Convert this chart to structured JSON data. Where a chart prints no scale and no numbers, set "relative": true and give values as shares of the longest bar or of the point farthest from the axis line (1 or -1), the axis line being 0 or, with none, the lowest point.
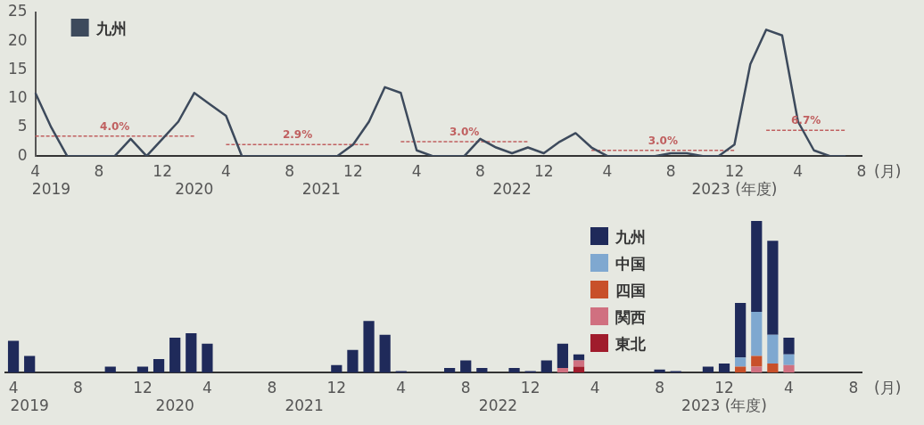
{
  "chart_data": [
    {
      "type": "line",
      "xlabel": "(月)",
      "categories": [
        "4",
        "\n2019",
        null,
        null,
        "8",
        null,
        null,
        null,
        "12",
        null,
        "\n2020",
        null,
        "4",
        null,
        null,
        null,
        "8",
        null,
        "\n2021",
        null,
        "12",
        null,
        null,
        null,
        "4",
        null,
        null,
        null,
        "8",
        null,
        "\n2022",
        null,
        "12",
        null,
        null,
        null,
        "4",
        null,
        null,
        null,
        "8",
        null,
        null,
        null,
        "12\n2023 (年度)",
        null,
        null,
        null,
        "4",
        null,
        null,
        null,
        "8"
      ],
      "series": [
        {
          "name": "九州",
          "color": "#3d4a5c",
          "values": [
            11,
            5,
            0,
            0,
            0,
            0,
            3,
            0,
            3,
            6,
            11,
            9,
            7,
            0,
            0,
            0,
            0,
            0,
            0,
            0,
            2,
            6,
            12,
            11,
            1,
            0,
            0,
            0,
            3,
            1.5,
            0.5,
            1.5,
            0.5,
            2.5,
            4,
            1.5,
            0,
            0,
            0,
            0,
            0.5,
            0.5,
            0,
            0,
            2,
            16,
            22,
            21,
            6,
            1,
            0,
            0,
            null
          ]
        },
        {
          "color": "#c06060",
          "line_style": "dashed",
          "values": [
            3.5,
            3.5,
            3.5,
            3.5,
            3.5,
            3.5,
            3.5,
            3.5,
            3.5,
            3.5,
            3.5,
            null,
            2,
            2,
            2,
            2,
            2,
            2,
            2,
            2,
            2,
            2,
            null,
            2.5,
            2.5,
            2.5,
            2.5,
            2.5,
            2.5,
            2.5,
            2.5,
            2.5,
            null,
            null,
            null,
            1,
            1,
            1,
            1,
            1,
            1,
            1,
            1,
            1,
            1,
            null,
            4.5,
            4.5,
            4.5,
            4.5,
            4.5,
            4.5,
            null
          ]
        }
      ],
      "annotations": [
        "4.0%",
        "2.9%",
        "3.0%",
        "3.0%",
        "6.7%"
      ],
      "ylim": [
        0,
        25
      ],
      "yticks": [
        0,
        5,
        10,
        15,
        20,
        25
      ],
      "grid": false,
      "legend": "top left",
      "marker": "none"
    },
    {
      "type": "bar",
      "stacked": true,
      "relative": true,
      "categories": [
        "4",
        "\n2019",
        null,
        null,
        "8",
        null,
        null,
        null,
        "12",
        null,
        "\n2020",
        null,
        "4",
        null,
        null,
        null,
        "8",
        null,
        "\n2021",
        null,
        "12",
        null,
        null,
        null,
        "4",
        null,
        null,
        null,
        "8",
        null,
        "\n2022",
        null,
        "12",
        null,
        null,
        null,
        "4",
        null,
        null,
        null,
        "8",
        null,
        null,
        null,
        "12\n2023 (年度)",
        null,
        null,
        null,
        "4",
        null,
        null,
        null,
        "8"
      ],
      "xlabel": "(月)",
      "series": [
        {
          "name": "東北",
          "color": "#a01c2c",
          "values": [
            0,
            0,
            0,
            0,
            0,
            0,
            0,
            0,
            0,
            0,
            0,
            0,
            0,
            0,
            0,
            0,
            0,
            0,
            0,
            0,
            0,
            0,
            0,
            0,
            0,
            0,
            0,
            0,
            0,
            0,
            0,
            0,
            0,
            0,
            0,
            0.04,
            0,
            0,
            0,
            0,
            0,
            0,
            0,
            0,
            0,
            0,
            0,
            0,
            0,
            0,
            0,
            0,
            0
          ]
        },
        {
          "name": "関西",
          "color": "#d07080",
          "values": [
            0,
            0,
            0,
            0,
            0,
            0,
            0,
            0,
            0,
            0,
            0,
            0,
            0,
            0,
            0,
            0,
            0,
            0,
            0,
            0,
            0,
            0,
            0,
            0,
            0,
            0,
            0,
            0,
            0,
            0,
            0,
            0,
            0,
            0,
            0.03,
            0.04,
            0,
            0,
            0,
            0,
            0,
            0,
            0,
            0,
            0,
            0,
            0.04,
            0,
            0.05,
            0,
            0,
            0,
            0
          ]
        },
        {
          "name": "四国",
          "color": "#c8502a",
          "values": [
            0,
            0,
            0,
            0,
            0,
            0,
            0,
            0,
            0,
            0,
            0,
            0,
            0,
            0,
            0,
            0,
            0,
            0,
            0,
            0,
            0,
            0,
            0,
            0,
            0,
            0,
            0,
            0,
            0,
            0,
            0,
            0,
            0,
            0,
            0,
            0,
            0,
            0,
            0,
            0,
            0,
            0,
            0,
            0,
            0,
            0.04,
            0.07,
            0.06,
            0,
            0,
            0,
            0,
            0
          ]
        },
        {
          "name": "中国",
          "color": "#7fa8d0",
          "values": [
            0,
            0,
            0,
            0,
            0,
            0,
            0,
            0,
            0,
            0,
            0,
            0,
            0,
            0,
            0,
            0,
            0,
            0,
            0,
            0,
            0,
            0,
            0,
            0,
            0,
            0,
            0,
            0,
            0,
            0,
            0,
            0,
            0,
            0,
            0,
            0,
            0,
            0,
            0,
            0,
            0,
            0,
            0,
            0,
            0,
            0.06,
            0.29,
            0.19,
            0.07,
            0,
            0,
            0,
            0
          ]
        },
        {
          "name": "九州",
          "color": "#1f2a5a",
          "values": [
            0.21,
            0.11,
            0,
            0,
            0,
            0,
            0.04,
            0,
            0.04,
            0.09,
            0.23,
            0.26,
            0.19,
            0,
            0,
            0,
            0,
            0,
            0,
            0,
            0.05,
            0.15,
            0.34,
            0.25,
            0.01,
            0,
            0,
            0.03,
            0.08,
            0.03,
            0,
            0.03,
            0.01,
            0.08,
            0.16,
            0.04,
            0,
            0,
            0,
            0,
            0.02,
            0.01,
            0,
            0.04,
            0.06,
            0.36,
            0.6,
            0.62,
            0.11,
            0,
            0,
            0,
            0
          ]
        }
      ],
      "grid": false,
      "legend": "top right"
    }
  ]
}
